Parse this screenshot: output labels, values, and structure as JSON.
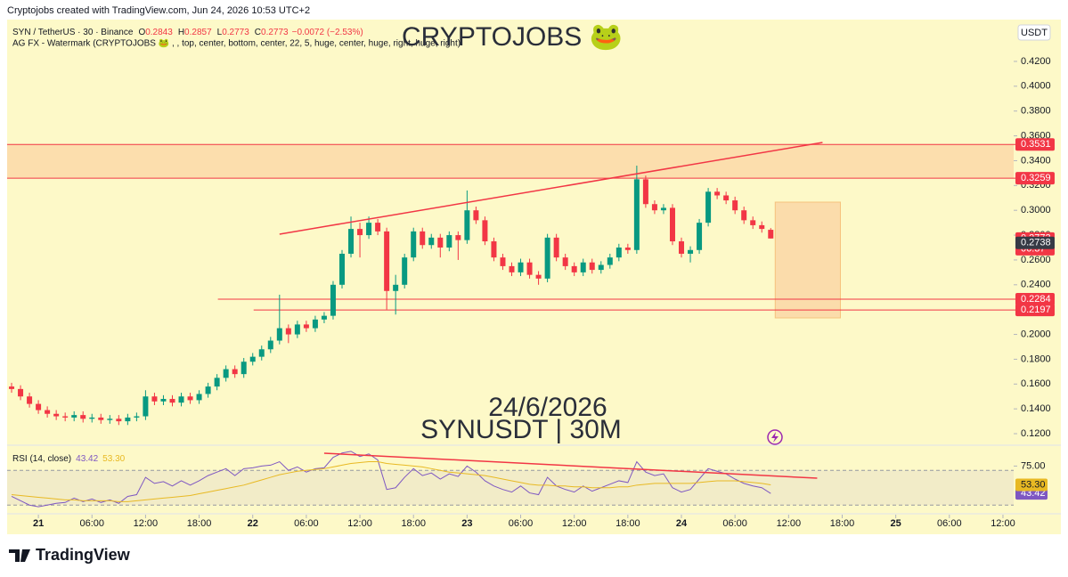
{
  "header": "Cryptojobs created with TradingView.com, Jun 24, 2026 10:53 UTC+2",
  "brand": "TradingView",
  "chart_data": {
    "type": "candlestick",
    "symbol": "SYN / TetherUS · 30 · Binance",
    "ohlc_legend": {
      "O": 0.2843,
      "H": 0.2857,
      "L": 0.2773,
      "C": 0.2773,
      "change": "−0.0072 (−2.53%)"
    },
    "indicator": "AG FX - Watermark (CRYPTOJOBS 🐸 , , top, center, bottom, center, 22, 5, huge, center, huge, right, huge, right)",
    "watermark": "CRYPTOJOBS 🐸",
    "date_text": "24/6/2026",
    "pair_text": "SYNUSDT | 30M",
    "currency": "USDT",
    "up_color": "#089981",
    "down_color": "#f23645",
    "xlim": [
      -3.5,
      109.2
    ],
    "xticks": [
      {
        "value": 0,
        "label": "21"
      },
      {
        "value": 6,
        "label": "06:00"
      },
      {
        "value": 12,
        "label": "12:00"
      },
      {
        "value": 18,
        "label": "18:00"
      },
      {
        "value": 24,
        "label": "22"
      },
      {
        "value": 30,
        "label": "06:00"
      },
      {
        "value": 36,
        "label": "12:00"
      },
      {
        "value": 42,
        "label": "18:00"
      },
      {
        "value": 48,
        "label": "23"
      },
      {
        "value": 54,
        "label": "06:00"
      },
      {
        "value": 60,
        "label": "12:00"
      },
      {
        "value": 66,
        "label": "18:00"
      },
      {
        "value": 72,
        "label": "24"
      },
      {
        "value": 78,
        "label": "06:00"
      },
      {
        "value": 84,
        "label": "12:00"
      },
      {
        "value": 90,
        "label": "18:00"
      },
      {
        "value": 96,
        "label": "25"
      },
      {
        "value": 102,
        "label": "06:00"
      },
      {
        "value": 108,
        "label": "12:00"
      }
    ],
    "ylim": [
      0.1107,
      0.4537
    ],
    "yticks": [
      {
        "value": 0.12,
        "label": "0.1200"
      },
      {
        "value": 0.14,
        "label": "0.1400"
      },
      {
        "value": 0.16,
        "label": "0.1600"
      },
      {
        "value": 0.18,
        "label": "0.1800"
      },
      {
        "value": 0.2,
        "label": "0.2000"
      },
      {
        "value": 0.24,
        "label": "0.2400"
      },
      {
        "value": 0.26,
        "label": "0.2600"
      },
      {
        "value": 0.28,
        "label": "0.2800"
      },
      {
        "value": 0.3,
        "label": "0.3000"
      },
      {
        "value": 0.32,
        "label": "0.3200"
      },
      {
        "value": 0.34,
        "label": "0.3400"
      },
      {
        "value": 0.36,
        "label": "0.3600"
      },
      {
        "value": 0.38,
        "label": "0.3800"
      },
      {
        "value": 0.4,
        "label": "0.4000"
      },
      {
        "value": 0.42,
        "label": "0.4200"
      }
    ],
    "x": [
      -3,
      -2,
      -1,
      0,
      1,
      2,
      3,
      4,
      5,
      6,
      7,
      8,
      9,
      10,
      11,
      12,
      13,
      14,
      15,
      16,
      17,
      18,
      19,
      20,
      21,
      22,
      23,
      24,
      25,
      26,
      27,
      28,
      29,
      30,
      31,
      32,
      33,
      34,
      35,
      36,
      37,
      38,
      39,
      40,
      41,
      42,
      43,
      44,
      45,
      46,
      47,
      48,
      49,
      50,
      51,
      52,
      53,
      54,
      55,
      56,
      57,
      58,
      59,
      60,
      61,
      62,
      63,
      64,
      65,
      66,
      67,
      68,
      69,
      70,
      71,
      72,
      73,
      74,
      75,
      76,
      77,
      78,
      79,
      80,
      81,
      82
    ],
    "series": [
      {
        "name": "SYNUSDT",
        "open": [
          0.158,
          0.156,
          0.15,
          0.144,
          0.139,
          0.136,
          0.134,
          0.133,
          0.135,
          0.132,
          0.133,
          0.131,
          0.132,
          0.13,
          0.133,
          0.134,
          0.15,
          0.146,
          0.148,
          0.145,
          0.15,
          0.147,
          0.152,
          0.158,
          0.165,
          0.172,
          0.168,
          0.178,
          0.182,
          0.188,
          0.195,
          0.205,
          0.2,
          0.208,
          0.205,
          0.212,
          0.215,
          0.24,
          0.265,
          0.285,
          0.28,
          0.29,
          0.283,
          0.235,
          0.24,
          0.262,
          0.283,
          0.272,
          0.278,
          0.27,
          0.28,
          0.276,
          0.3,
          0.292,
          0.275,
          0.262,
          0.255,
          0.25,
          0.258,
          0.248,
          0.245,
          0.278,
          0.262,
          0.255,
          0.25,
          0.258,
          0.252,
          0.256,
          0.262,
          0.27,
          0.268,
          0.325,
          0.305,
          0.3,
          0.302,
          0.275,
          0.265,
          0.268,
          0.29,
          0.315,
          0.312,
          0.308,
          0.3,
          0.292,
          0.288,
          0.2843
        ],
        "high": [
          0.161,
          0.159,
          0.153,
          0.147,
          0.142,
          0.139,
          0.137,
          0.138,
          0.138,
          0.136,
          0.136,
          0.135,
          0.135,
          0.136,
          0.137,
          0.155,
          0.153,
          0.151,
          0.151,
          0.153,
          0.153,
          0.155,
          0.161,
          0.168,
          0.175,
          0.175,
          0.181,
          0.185,
          0.191,
          0.198,
          0.232,
          0.208,
          0.211,
          0.211,
          0.215,
          0.218,
          0.243,
          0.268,
          0.295,
          0.29,
          0.295,
          0.293,
          0.286,
          0.248,
          0.265,
          0.286,
          0.286,
          0.281,
          0.281,
          0.283,
          0.283,
          0.316,
          0.303,
          0.295,
          0.278,
          0.265,
          0.258,
          0.261,
          0.261,
          0.251,
          0.281,
          0.281,
          0.265,
          0.258,
          0.261,
          0.261,
          0.259,
          0.265,
          0.273,
          0.273,
          0.336,
          0.328,
          0.308,
          0.305,
          0.305,
          0.278,
          0.271,
          0.293,
          0.318,
          0.318,
          0.315,
          0.311,
          0.303,
          0.295,
          0.291,
          0.2857
        ],
        "low": [
          0.153,
          0.147,
          0.141,
          0.136,
          0.133,
          0.131,
          0.13,
          0.13,
          0.129,
          0.129,
          0.128,
          0.128,
          0.127,
          0.127,
          0.13,
          0.131,
          0.143,
          0.143,
          0.142,
          0.142,
          0.144,
          0.144,
          0.149,
          0.155,
          0.162,
          0.165,
          0.165,
          0.175,
          0.179,
          0.185,
          0.192,
          0.193,
          0.197,
          0.202,
          0.202,
          0.209,
          0.212,
          0.237,
          0.262,
          0.262,
          0.277,
          0.28,
          0.22,
          0.216,
          0.237,
          0.259,
          0.269,
          0.269,
          0.262,
          0.267,
          0.26,
          0.273,
          0.289,
          0.272,
          0.259,
          0.252,
          0.247,
          0.247,
          0.245,
          0.24,
          0.242,
          0.259,
          0.252,
          0.247,
          0.247,
          0.249,
          0.249,
          0.253,
          0.259,
          0.265,
          0.265,
          0.302,
          0.297,
          0.297,
          0.272,
          0.262,
          0.258,
          0.265,
          0.287,
          0.309,
          0.305,
          0.297,
          0.289,
          0.285,
          0.282,
          0.2773
        ],
        "close": [
          0.156,
          0.15,
          0.144,
          0.139,
          0.136,
          0.134,
          0.133,
          0.135,
          0.132,
          0.133,
          0.131,
          0.132,
          0.13,
          0.133,
          0.134,
          0.15,
          0.146,
          0.148,
          0.145,
          0.15,
          0.147,
          0.152,
          0.158,
          0.165,
          0.172,
          0.168,
          0.178,
          0.182,
          0.188,
          0.195,
          0.205,
          0.2,
          0.208,
          0.205,
          0.212,
          0.215,
          0.24,
          0.265,
          0.285,
          0.28,
          0.29,
          0.283,
          0.235,
          0.24,
          0.262,
          0.283,
          0.272,
          0.278,
          0.27,
          0.28,
          0.276,
          0.3,
          0.292,
          0.275,
          0.262,
          0.255,
          0.25,
          0.258,
          0.248,
          0.245,
          0.278,
          0.262,
          0.255,
          0.25,
          0.258,
          0.252,
          0.256,
          0.262,
          0.27,
          0.268,
          0.325,
          0.305,
          0.3,
          0.302,
          0.275,
          0.265,
          0.268,
          0.29,
          0.315,
          0.312,
          0.308,
          0.3,
          0.292,
          0.288,
          0.285,
          0.2773
        ]
      }
    ],
    "zone": {
      "y": [
        0.3259,
        0.3531
      ],
      "color": "#fbd7a6"
    },
    "levels": [
      {
        "value": 0.3531
      },
      {
        "value": 0.3259
      },
      {
        "value": 0.2284,
        "from": 20.1
      },
      {
        "value": 0.2197,
        "from": 24.1
      }
    ],
    "level_color": "#f23645",
    "trendline": {
      "x": [
        27,
        87.8
      ],
      "y": [
        0.2808,
        0.3547
      ],
      "color": "#f23645"
    },
    "box": {
      "x": [
        82.5,
        89.8
      ],
      "y": [
        0.2133,
        0.3066
      ],
      "color": "#fbd7a6"
    },
    "price_labels": [
      {
        "value": 0.3531,
        "color": "#f23645"
      },
      {
        "value": 0.3259,
        "color": "#f23645"
      },
      {
        "value": 0.2773,
        "color": "#f23645",
        "countdown": "06:37"
      },
      {
        "value": 0.2738,
        "color": "#363a45"
      },
      {
        "value": 0.2284,
        "color": "#f23645"
      },
      {
        "value": 0.2197,
        "color": "#f23645"
      }
    ],
    "rsi": {
      "title": "RSI (14, close)",
      "ylim": [
        22,
        98
      ],
      "yticks": [
        {
          "value": 75,
          "label": "75.00"
        }
      ],
      "band": [
        30,
        70
      ],
      "series": [
        {
          "name": "RSI",
          "color": "#7e57c2",
          "last": 43.42,
          "values": [
            40,
            35,
            30,
            28,
            30,
            32,
            33,
            38,
            34,
            37,
            33,
            36,
            32,
            40,
            42,
            62,
            55,
            57,
            52,
            58,
            53,
            58,
            64,
            68,
            72,
            64,
            72,
            73,
            75,
            76,
            80,
            70,
            74,
            68,
            72,
            73,
            85,
            90,
            92,
            86,
            89,
            82,
            48,
            50,
            62,
            72,
            64,
            67,
            60,
            66,
            63,
            75,
            68,
            58,
            52,
            48,
            45,
            52,
            44,
            42,
            62,
            52,
            48,
            45,
            52,
            46,
            50,
            54,
            58,
            56,
            80,
            68,
            64,
            66,
            50,
            45,
            48,
            60,
            72,
            69,
            66,
            60,
            55,
            52,
            50,
            43.42
          ]
        },
        {
          "name": "RSI-based MA",
          "color": "#e8b923",
          "last": {
            "value": 53.3,
            "label": "53.30"
          },
          "values": [
            42,
            41,
            40,
            39,
            38,
            37,
            36,
            36,
            35,
            35,
            35,
            35,
            34,
            34,
            35,
            36,
            37,
            38,
            39,
            40,
            41,
            43,
            45,
            47,
            49,
            51,
            53,
            56,
            59,
            62,
            65,
            67,
            69,
            70,
            71,
            72,
            74,
            76,
            78,
            79,
            80,
            80,
            78,
            77,
            76,
            75,
            74,
            72,
            70,
            68,
            67,
            66,
            65,
            64,
            62,
            60,
            58,
            56,
            54,
            53,
            53,
            52,
            52,
            51,
            51,
            50,
            50,
            50,
            51,
            51,
            53,
            54,
            55,
            55,
            55,
            55,
            55,
            56,
            57,
            58,
            58,
            58,
            57,
            56,
            55,
            53.3
          ]
        }
      ],
      "trendline": {
        "x": [
          32,
          87.2
        ],
        "y": [
          89.8,
          61
        ],
        "color": "#f23645"
      }
    }
  }
}
